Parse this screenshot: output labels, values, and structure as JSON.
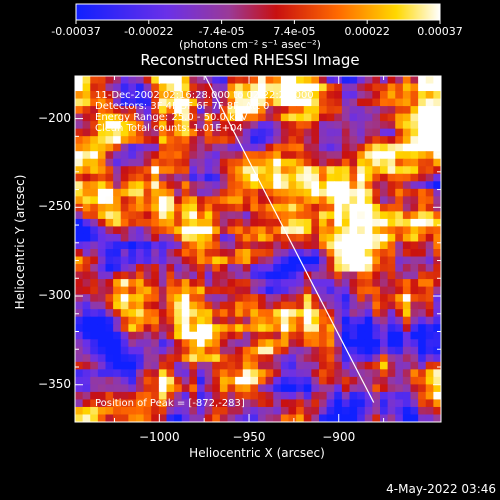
{
  "colorbar": {
    "tick_labels": [
      "-0.00037",
      "-0.00022",
      "-7.4e-05",
      "7.4e-05",
      "0.00022",
      "0.00037"
    ],
    "unit_label": "(photons cm⁻² s⁻¹ asec⁻²)",
    "range": [
      -0.00037,
      0.00037
    ],
    "colors": [
      "#1020ff",
      "#7030e0",
      "#a04080",
      "#c81010",
      "#ff7000",
      "#ffe000",
      "#ffffff"
    ]
  },
  "annotations": {
    "time_range": "11-Dec-2002 02:16:28.000 to 02:22:28.000",
    "detectors": "Detectors: 3F 4F 5F 6F 7F 8F, Att 0",
    "energy_range": "Energy Range: 25.0 - 50.0 keV",
    "clean_counts": "Clean    Total counts: 1.01E+04",
    "peak_position": "Position of Peak = [-872,-283]"
  },
  "footer": {
    "timestamp": "4-May-2022 03:46"
  },
  "chart_data": {
    "type": "heatmap",
    "title": "Reconstructed RHESSI Image",
    "xlabel": "Heliocentric X (arcsec)",
    "ylabel": "Heliocentric Y (arcsec)",
    "xlim": [
      -1047,
      -843
    ],
    "ylim": [
      -371,
      -176
    ],
    "x_ticks": [
      -1000,
      -950,
      -900
    ],
    "y_ticks": [
      -200,
      -250,
      -300,
      -350
    ],
    "limb_line": {
      "x": [
        -974.5,
        -880.5
      ],
      "y": [
        -176,
        -360
      ]
    },
    "peak": {
      "x": -872,
      "y": -283
    },
    "grid": false,
    "legend": "none",
    "grid_size": [
      48,
      46
    ],
    "pixel_map_seed": 7
  }
}
